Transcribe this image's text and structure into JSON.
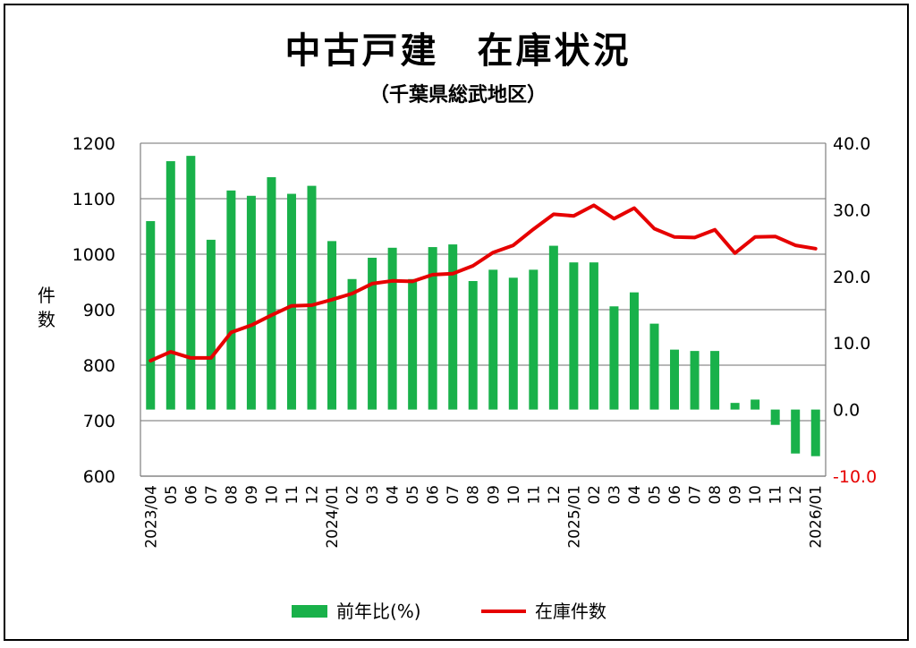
{
  "title": "中古戸建　在庫状況",
  "subtitle": "（千葉県総武地区）",
  "ylabel": "件\n数",
  "chart_data": {
    "type": "bar+line",
    "x": [
      "2023/04",
      "05",
      "06",
      "07",
      "08",
      "09",
      "10",
      "11",
      "12",
      "2024/01",
      "02",
      "03",
      "04",
      "05",
      "06",
      "07",
      "08",
      "09",
      "10",
      "11",
      "12",
      "2025/01",
      "02",
      "03",
      "04",
      "05",
      "06",
      "07",
      "08",
      "09",
      "10",
      "11",
      "12",
      "2026/01"
    ],
    "series": [
      {
        "name": "前年比(%)",
        "type": "bar",
        "axis": "right",
        "color": "#19b14a",
        "values": [
          28.3,
          37.3,
          38.1,
          25.5,
          32.9,
          32.1,
          34.9,
          32.4,
          33.6,
          25.3,
          19.6,
          22.8,
          24.3,
          19.6,
          24.4,
          24.8,
          19.3,
          21.0,
          19.8,
          21.0,
          24.6,
          22.1,
          22.1,
          15.5,
          17.6,
          12.9,
          9.0,
          8.8,
          8.8,
          1.0,
          1.5,
          -2.3,
          -6.6,
          -7.0
        ]
      },
      {
        "name": "在庫件数",
        "type": "line",
        "axis": "left",
        "color": "#e60000",
        "values": [
          808,
          824,
          813,
          813,
          859,
          872,
          890,
          907,
          908,
          918,
          929,
          947,
          952,
          951,
          963,
          965,
          979,
          1003,
          1016,
          1045,
          1072,
          1069,
          1088,
          1064,
          1083,
          1046,
          1031,
          1030,
          1044,
          1002,
          1031,
          1032,
          1016,
          1010
        ]
      }
    ],
    "ylim_left": [
      600,
      1200
    ],
    "yticks_left": [
      "600",
      "700",
      "800",
      "900",
      "1000",
      "1100",
      "1200"
    ],
    "ylim_right": [
      -10,
      40
    ],
    "yticks_right": [
      "-10.0",
      "0.0",
      "10.0",
      "20.0",
      "30.0",
      "40.0"
    ],
    "grid": true,
    "legend": {
      "position": "bottom",
      "items": [
        "前年比(%)",
        "在庫件数"
      ]
    }
  }
}
